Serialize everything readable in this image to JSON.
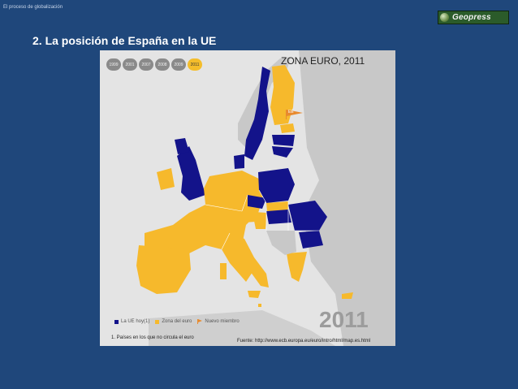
{
  "header": {
    "breadcrumb": "El proceso de globalización",
    "logo_text": "Geopress"
  },
  "slide": {
    "title": "2. La posición de España en la UE"
  },
  "map": {
    "title": "ZONA EURO, 2011",
    "years": [
      "1999",
      "2001",
      "2007",
      "2008",
      "2009",
      "2011"
    ],
    "active_year": "2011",
    "big_year": "2011",
    "member_tag": "EE",
    "legend": {
      "eu": "La UE hoy(1)",
      "euro": "Zona del euro",
      "new": "Nuevo miembro"
    },
    "footnote": "1. Países en los que no circula el euro",
    "source": "Fuente: http://www.ecb.europa.eu/euro/intro/html/map.es.html",
    "colors": {
      "eu_member": "#13138a",
      "euro_zone": "#f6b92c",
      "land": "#c8c8c8",
      "sea": "#e4e4e4",
      "new_member": "#e88a2e"
    }
  }
}
